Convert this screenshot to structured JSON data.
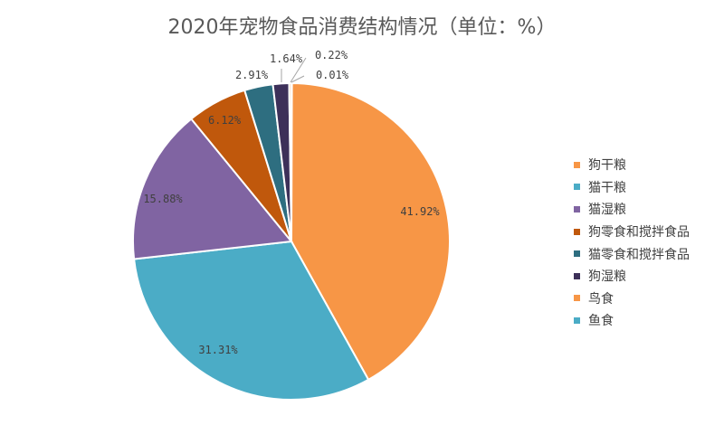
{
  "chart_data": {
    "type": "pie",
    "title": "2020年宠物食品消费结构情况（单位：%）",
    "categories": [
      "狗干粮",
      "猫干粮",
      "猫湿粮",
      "狗零食和搅拌食品",
      "猫零食和搅拌食品",
      "狗湿粮",
      "鸟食",
      "鱼食"
    ],
    "values": [
      41.92,
      31.31,
      15.88,
      6.12,
      2.91,
      1.64,
      0.22,
      0.01
    ],
    "labels": [
      "41.92%",
      "31.31%",
      "15.88%",
      "6.12%",
      "2.91%",
      "1.64%",
      "0.22%",
      "0.01%"
    ],
    "colors": [
      "#F79646",
      "#4BACC6",
      "#8064A2",
      "#C0580C",
      "#2E6E80",
      "#3D3059",
      "#F79646",
      "#4BACC6"
    ],
    "legend_position": "right"
  }
}
